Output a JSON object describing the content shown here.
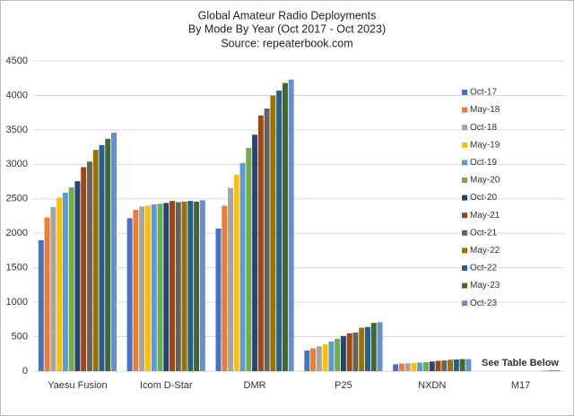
{
  "chart_data": {
    "type": "bar",
    "title": "Global Amateur Radio Deployments",
    "subtitle": "By Mode By Year (Oct 2017 - Oct 2023)",
    "source": "Source: repeaterbook.com",
    "annotation": "See Table Below",
    "categories": [
      "Yaesu Fusion",
      "Icom D-Star",
      "DMR",
      "P25",
      "NXDN",
      "M17"
    ],
    "series": [
      {
        "name": "Oct-17",
        "color": "#4472c4",
        "values": [
          1900,
          2220,
          2070,
          300,
          100,
          0
        ]
      },
      {
        "name": "May-18",
        "color": "#ed7d31",
        "values": [
          2230,
          2340,
          2400,
          330,
          110,
          0
        ]
      },
      {
        "name": "Oct-18",
        "color": "#a5a5a5",
        "values": [
          2380,
          2390,
          2660,
          360,
          115,
          0
        ]
      },
      {
        "name": "May-19",
        "color": "#ffc000",
        "values": [
          2520,
          2400,
          2850,
          390,
          120,
          0
        ]
      },
      {
        "name": "Oct-19",
        "color": "#5b9bd5",
        "values": [
          2590,
          2420,
          3020,
          430,
          125,
          0
        ]
      },
      {
        "name": "May-20",
        "color": "#70ad47",
        "values": [
          2665,
          2430,
          3240,
          470,
          130,
          0
        ]
      },
      {
        "name": "Oct-20",
        "color": "#264478",
        "values": [
          2755,
          2440,
          3430,
          510,
          140,
          0
        ]
      },
      {
        "name": "May-21",
        "color": "#9e480e",
        "values": [
          2960,
          2470,
          3710,
          550,
          150,
          0
        ]
      },
      {
        "name": "Oct-21",
        "color": "#636363",
        "values": [
          3040,
          2450,
          3810,
          560,
          155,
          0
        ]
      },
      {
        "name": "May-22",
        "color": "#997300",
        "values": [
          3210,
          2460,
          4000,
          630,
          165,
          0
        ]
      },
      {
        "name": "Oct-22",
        "color": "#255e91",
        "values": [
          3280,
          2470,
          4070,
          640,
          170,
          5
        ]
      },
      {
        "name": "May-23",
        "color": "#43682b",
        "values": [
          3370,
          2460,
          4180,
          700,
          175,
          10
        ]
      },
      {
        "name": "Oct-23",
        "color": "#698ed0",
        "values": [
          3460,
          2480,
          4230,
          710,
          175,
          15
        ]
      }
    ],
    "ylim": [
      0,
      4500
    ],
    "yticks": [
      0,
      500,
      1000,
      1500,
      2000,
      2500,
      3000,
      3500,
      4000,
      4500
    ],
    "grid": true,
    "legend": "right"
  }
}
